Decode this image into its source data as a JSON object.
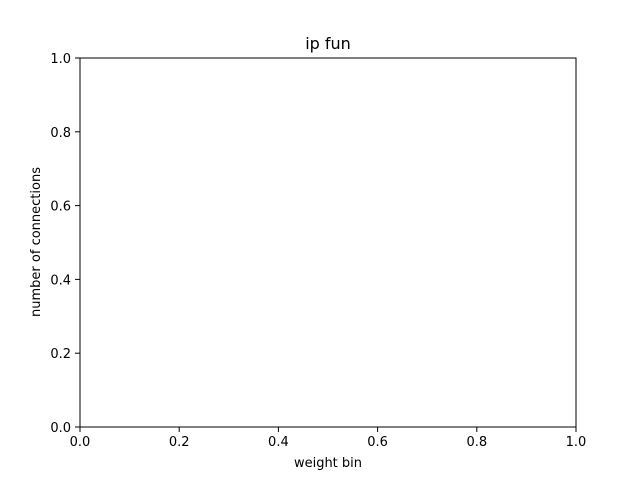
{
  "chart_data": {
    "type": "bar",
    "title": "ip fun",
    "xlabel": "weight bin",
    "ylabel": "number of connections",
    "xlim": [
      0.0,
      1.0
    ],
    "ylim": [
      0.0,
      1.0
    ],
    "x_ticks": [
      "0.0",
      "0.2",
      "0.4",
      "0.6",
      "0.8",
      "1.0"
    ],
    "y_ticks": [
      "0.0",
      "0.2",
      "0.4",
      "0.6",
      "0.8",
      "1.0"
    ],
    "categories": [],
    "values": [],
    "grid": false
  }
}
